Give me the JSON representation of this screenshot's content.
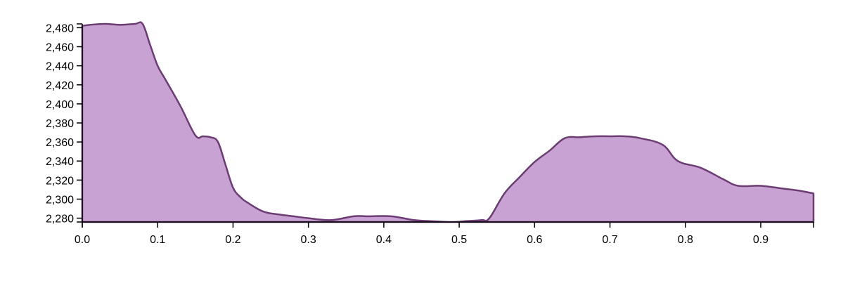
{
  "colors": {
    "area_fill": "#c8a2d2",
    "area_stroke": "#6b3d73",
    "axis": "#000000"
  },
  "chart_data": {
    "type": "area",
    "title": "",
    "xlabel": "",
    "ylabel": "",
    "xlim": [
      0,
      0.97
    ],
    "ylim": [
      2276,
      2484
    ],
    "grid": false,
    "legend": "none",
    "x_ticks": [
      0.0,
      0.1,
      0.2,
      0.3,
      0.4,
      0.5,
      0.6,
      0.7,
      0.8,
      0.9
    ],
    "x_tick_labels": [
      "0.0",
      "0.1",
      "0.2",
      "0.3",
      "0.4",
      "0.5",
      "0.6",
      "0.7",
      "0.8",
      "0.9"
    ],
    "y_ticks": [
      2280,
      2300,
      2320,
      2340,
      2360,
      2380,
      2400,
      2420,
      2440,
      2460,
      2480
    ],
    "y_tick_labels": [
      "2,280",
      "2,300",
      "2,320",
      "2,340",
      "2,360",
      "2,380",
      "2,400",
      "2,420",
      "2,440",
      "2,460",
      "2,480"
    ],
    "series": [
      {
        "x": [
          0.0,
          0.01,
          0.03,
          0.05,
          0.07,
          0.08,
          0.09,
          0.1,
          0.11,
          0.13,
          0.15,
          0.16,
          0.17,
          0.18,
          0.19,
          0.2,
          0.21,
          0.22,
          0.24,
          0.26,
          0.28,
          0.3,
          0.33,
          0.36,
          0.38,
          0.41,
          0.44,
          0.46,
          0.49,
          0.51,
          0.53,
          0.54,
          0.56,
          0.58,
          0.6,
          0.62,
          0.64,
          0.66,
          0.68,
          0.7,
          0.72,
          0.74,
          0.77,
          0.79,
          0.82,
          0.85,
          0.87,
          0.9,
          0.93,
          0.95,
          0.97
        ],
        "y": [
          2482,
          2483,
          2484,
          2483,
          2484,
          2484,
          2462,
          2440,
          2426,
          2398,
          2367,
          2366,
          2365,
          2360,
          2336,
          2312,
          2302,
          2296,
          2287,
          2284,
          2282,
          2280,
          2278,
          2282,
          2282,
          2282,
          2278,
          2277,
          2276,
          2277,
          2278,
          2280,
          2306,
          2323,
          2339,
          2351,
          2364,
          2365,
          2366,
          2366,
          2366,
          2364,
          2357,
          2340,
          2333,
          2321,
          2314,
          2314,
          2311,
          2309,
          2306
        ]
      }
    ]
  }
}
